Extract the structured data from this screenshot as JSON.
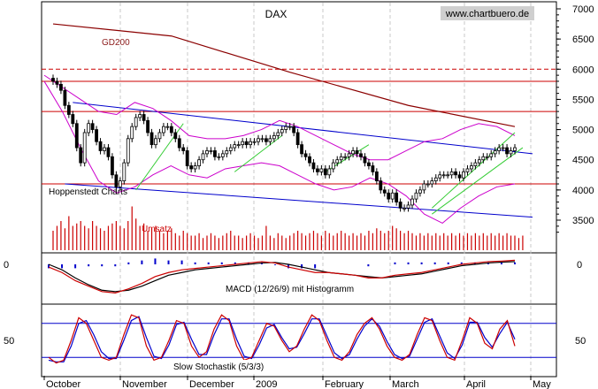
{
  "chart_data": [
    {
      "type": "candlestick",
      "title": "DAX",
      "watermark": "www.chartbuero.de",
      "ylim": [
        3200,
        7100
      ],
      "y_ticks": [
        "7000",
        "6500",
        "6000",
        "5500",
        "5000",
        "4500",
        "4000",
        "3500"
      ],
      "x_ticks": [
        "October",
        "November",
        "December",
        "2009",
        "February",
        "March",
        "April",
        "May"
      ],
      "annotations": {
        "ma_label": "GD200",
        "caption": "Hoppenstedt Charts",
        "volume_label": "Umsatz"
      },
      "close": [
        5800,
        5750,
        5650,
        5400,
        5250,
        5100,
        4700,
        4450,
        4950,
        5100,
        5000,
        4800,
        4650,
        4700,
        4550,
        4250,
        4050,
        4150,
        4450,
        4850,
        5050,
        5200,
        5250,
        5150,
        4950,
        4750,
        4850,
        4950,
        5050,
        5050,
        4950,
        4850,
        4700,
        4650,
        4400,
        4350,
        4400,
        4500,
        4600,
        4650,
        4650,
        4550,
        4550,
        4600,
        4650,
        4700,
        4750,
        4750,
        4800,
        4750,
        4800,
        4800,
        4850,
        4850,
        4800,
        4850,
        4900,
        4950,
        5000,
        5050,
        5050,
        4950,
        4750,
        4600,
        4550,
        4450,
        4350,
        4300,
        4350,
        4250,
        4350,
        4450,
        4500,
        4550,
        4550,
        4600,
        4650,
        4600,
        4550,
        4450,
        4400,
        4300,
        4150,
        4000,
        3950,
        3850,
        3950,
        3800,
        3700,
        3700,
        3750,
        3850,
        3950,
        4000,
        4100,
        4100,
        4150,
        4200,
        4250,
        4250,
        4250,
        4300,
        4250,
        4200,
        4300,
        4350,
        4400,
        4450,
        4500,
        4550,
        4550,
        4600,
        4650,
        4700,
        4700,
        4600,
        4650,
        4700
      ],
      "overlays": {
        "gd200": {
          "x": [
            0,
            30,
            60,
            90,
            117
          ],
          "y": [
            6750,
            6550,
            5950,
            5400,
            5050
          ]
        },
        "trend_upper": {
          "x": [
            5,
            117
          ],
          "y": [
            5450,
            4600
          ]
        },
        "trend_lower": {
          "x": [
            3,
            117
          ],
          "y": [
            4100,
            3550
          ]
        },
        "bollinger_upper": [
          5900,
          5700,
          5500,
          5300,
          5250,
          5450,
          5350,
          5150,
          4900,
          4850,
          4850,
          4900,
          5000,
          5150,
          5050,
          4900,
          4750,
          4600,
          4500,
          4500,
          4650,
          4800,
          4850,
          5000,
          5100,
          5050,
          4900
        ],
        "bollinger_lower": [
          5800,
          5300,
          4700,
          4150,
          3950,
          4050,
          4250,
          4400,
          4250,
          4200,
          4350,
          4400,
          4450,
          4400,
          4250,
          4100,
          4000,
          4050,
          4200,
          4100,
          3900,
          3600,
          3450,
          3700,
          3900,
          4050,
          4100
        ],
        "resistance_levels": [
          6000,
          5800,
          5300,
          4100
        ],
        "channels": [
          {
            "x": [
              21,
              33
            ],
            "y": [
              4000,
              5100
            ]
          },
          {
            "x": [
              46,
              58
            ],
            "y": [
              4300,
              4900
            ]
          },
          {
            "x": [
              69,
              80
            ],
            "y": [
              4300,
              4750
            ]
          },
          {
            "x": [
              96,
              117
            ],
            "y": [
              3700,
              4950
            ]
          },
          {
            "x": [
              96,
              119
            ],
            "y": [
              3600,
              4700
            ]
          }
        ]
      }
    },
    {
      "type": "bar",
      "title": "Umsatz",
      "values": [
        0.4,
        0.5,
        0.6,
        0.45,
        0.7,
        0.5,
        0.55,
        0.6,
        0.5,
        0.45,
        0.6,
        0.5,
        0.45,
        0.4,
        0.5,
        0.55,
        0.6,
        0.5,
        0.45,
        0.6,
        0.9,
        0.65,
        0.5,
        0.55,
        0.4,
        0.45,
        0.5,
        0.4,
        0.35,
        0.4,
        0.45,
        0.35,
        0.3,
        0.4,
        0.35,
        0.3,
        0.3,
        0.35,
        0.25,
        0.3,
        0.35,
        0.3,
        0.25,
        0.3,
        0.35,
        0.4,
        0.3,
        0.3,
        0.25,
        0.3,
        0.35,
        0.3,
        0.25,
        0.3,
        0.5,
        0.3,
        0.25,
        0.35,
        0.3,
        0.25,
        0.3,
        0.35,
        0.4,
        0.35,
        0.3,
        0.35,
        0.4,
        0.35,
        0.3,
        0.4,
        0.35,
        0.3,
        0.35,
        0.4,
        0.35,
        0.3,
        0.35,
        0.3,
        0.35,
        0.3,
        0.4,
        0.35,
        0.45,
        0.4,
        0.35,
        0.4,
        0.5,
        0.45,
        0.4,
        0.35,
        0.4,
        0.35,
        0.3,
        0.35,
        0.3,
        0.35,
        0.3,
        0.35,
        0.3,
        0.35,
        0.3,
        0.35,
        0.3,
        0.35,
        0.3,
        0.35,
        0.3,
        0.35,
        0.3,
        0.35,
        0.3,
        0.35,
        0.3,
        0.35,
        0.3,
        0.35,
        0.3,
        0.3,
        0.25,
        0.3
      ]
    },
    {
      "type": "line",
      "title": "MACD (12/26/9) mit Histogramm",
      "y_ticks": [
        "0"
      ],
      "series": [
        {
          "values": [
            -0.1,
            -0.3,
            -0.6,
            -0.8,
            -1.0,
            -1.05,
            -0.9,
            -0.7,
            -0.45,
            -0.3,
            -0.2,
            -0.15,
            -0.1,
            -0.05,
            0.0,
            0.05,
            0.1,
            0.05,
            -0.1,
            -0.2,
            -0.3,
            -0.3,
            -0.35,
            -0.4,
            -0.5,
            -0.5,
            -0.4,
            -0.35,
            -0.3,
            -0.2,
            -0.1,
            0.0,
            0.05,
            0.1,
            0.12,
            0.15
          ]
        },
        {
          "values": [
            0.0,
            -0.2,
            -0.5,
            -0.75,
            -0.95,
            -1.0,
            -0.95,
            -0.8,
            -0.6,
            -0.4,
            -0.3,
            -0.2,
            -0.15,
            -0.1,
            -0.05,
            0.0,
            0.05,
            0.07,
            0.0,
            -0.1,
            -0.2,
            -0.3,
            -0.35,
            -0.4,
            -0.45,
            -0.5,
            -0.45,
            -0.4,
            -0.35,
            -0.25,
            -0.15,
            -0.05,
            0.0,
            0.05,
            0.08,
            0.1
          ]
        }
      ]
    },
    {
      "type": "line",
      "title": "Slow Stochastik (5/3/3)",
      "y_ticks": [
        "50"
      ],
      "ylim": [
        0,
        100
      ],
      "series": [
        {
          "values": [
            20,
            10,
            15,
            50,
            90,
            80,
            50,
            20,
            15,
            20,
            60,
            95,
            90,
            40,
            15,
            20,
            50,
            85,
            80,
            40,
            20,
            30,
            70,
            95,
            85,
            40,
            15,
            20,
            50,
            80,
            75,
            50,
            30,
            40,
            70,
            95,
            85,
            50,
            20,
            15,
            30,
            60,
            80,
            90,
            70,
            40,
            20,
            15,
            25,
            60,
            90,
            85,
            50,
            20,
            15,
            50,
            90,
            80,
            45,
            35,
            70,
            85,
            40
          ]
        },
        {
          "values": [
            15,
            12,
            12,
            40,
            80,
            85,
            60,
            30,
            18,
            18,
            50,
            85,
            92,
            55,
            22,
            18,
            42,
            78,
            82,
            52,
            25,
            25,
            60,
            88,
            88,
            52,
            22,
            18,
            42,
            72,
            78,
            55,
            35,
            38,
            62,
            88,
            88,
            58,
            28,
            18,
            25,
            52,
            75,
            88,
            75,
            48,
            25,
            18,
            22,
            52,
            82,
            88,
            58,
            28,
            18,
            42,
            82,
            82,
            55,
            38,
            62,
            82,
            52
          ]
        }
      ],
      "reference_lines": [
        80,
        20
      ]
    }
  ]
}
